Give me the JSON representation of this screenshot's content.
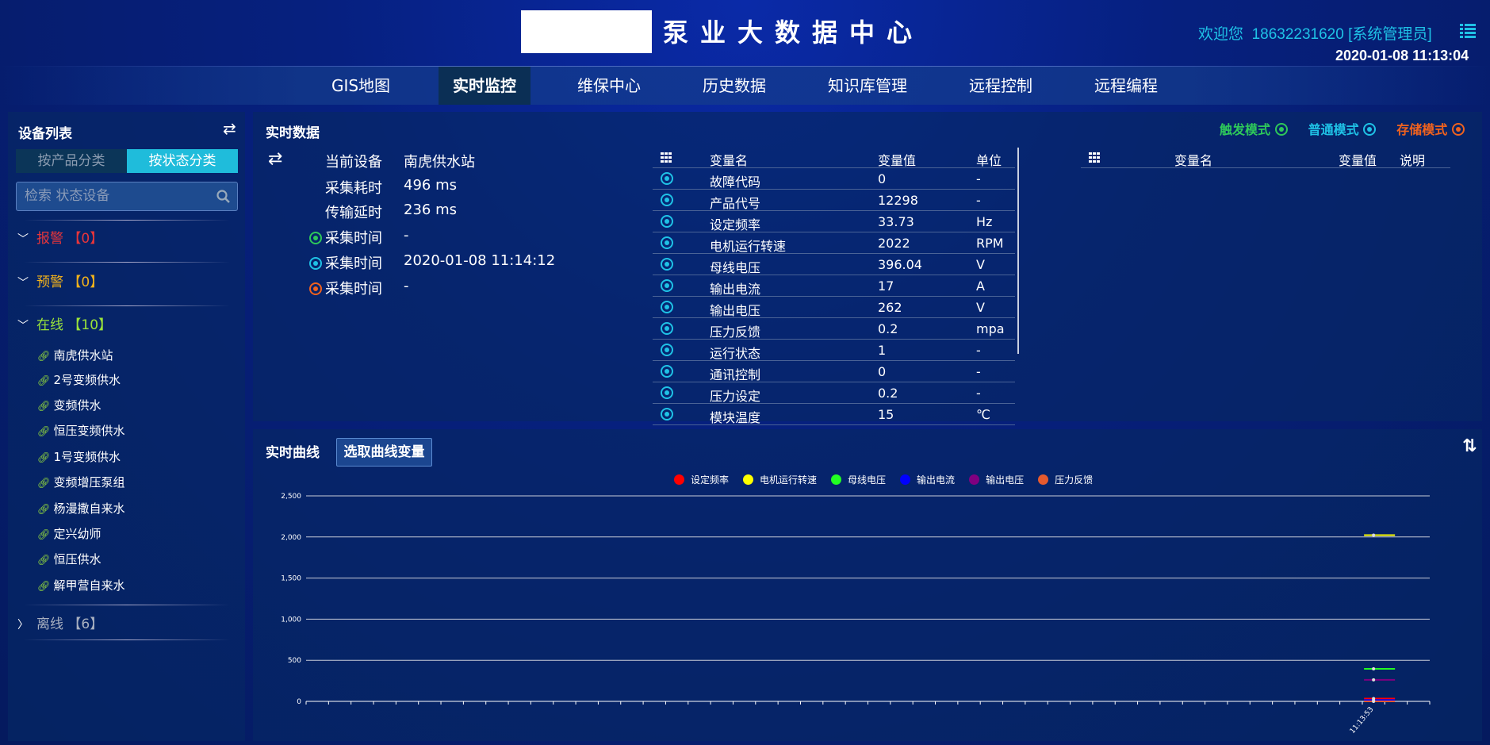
{
  "header": {
    "title": "泵业大数据中心",
    "welcome": "欢迎您",
    "user": "18632231620 [系统管理员]",
    "datetime": "2020-01-08 11:13:04"
  },
  "nav": [
    {
      "label": "GIS地图"
    },
    {
      "label": "实时监控",
      "active": true
    },
    {
      "label": "维保中心"
    },
    {
      "label": "历史数据"
    },
    {
      "label": "知识库管理"
    },
    {
      "label": "远程控制"
    },
    {
      "label": "远程编程"
    }
  ],
  "sidebar": {
    "title": "设备列表",
    "tabs": [
      {
        "label": "按产品分类"
      },
      {
        "label": "按状态分类",
        "active": true
      }
    ],
    "search_placeholder": "检索 状态设备",
    "groups": [
      {
        "label": "报警",
        "count": "【0】",
        "color": "#e8353a",
        "expanded": true
      },
      {
        "label": "预警",
        "count": "【0】",
        "color": "#f2b21b",
        "expanded": true
      },
      {
        "label": "在线",
        "count": "【10】",
        "color": "#9be43a",
        "expanded": true
      },
      {
        "label": "离线",
        "count": "【6】",
        "color": "#a8b0c0",
        "expanded": false
      }
    ],
    "devices": [
      "南虎供水站",
      "2号变频供水",
      "变频供水",
      "恒压变频供水",
      "1号变频供水",
      "变频增压泵组",
      "杨漫撒自来水",
      "定兴幼师",
      "恒压供水",
      "解甲营自来水"
    ]
  },
  "realtime": {
    "title": "实时数据",
    "modes": [
      {
        "label": "触发模式",
        "color": "#2ec85a"
      },
      {
        "label": "普通模式",
        "color": "#1fc2e6"
      },
      {
        "label": "存储模式",
        "color": "#f0621e"
      }
    ],
    "info": [
      {
        "label": "当前设备",
        "value": "南虎供水站"
      },
      {
        "label": "采集耗时",
        "value": "496 ms"
      },
      {
        "label": "传输延时",
        "value": "236 ms"
      },
      {
        "label": "采集时间",
        "value": "-",
        "icon_color": "#2ec85a"
      },
      {
        "label": "采集时间",
        "value": "2020-01-08 11:14:12",
        "icon_color": "#1fc2e6"
      },
      {
        "label": "采集时间",
        "value": "-",
        "icon_color": "#f0621e"
      }
    ],
    "table": {
      "headers": [
        "变量名",
        "变量值",
        "单位"
      ],
      "rows": [
        [
          "故障代码",
          "0",
          "-"
        ],
        [
          "产品代号",
          "12298",
          "-"
        ],
        [
          "设定频率",
          "33.73",
          "Hz"
        ],
        [
          "电机运行转速",
          "2022",
          "RPM"
        ],
        [
          "母线电压",
          "396.04",
          "V"
        ],
        [
          "输出电流",
          "17",
          "A"
        ],
        [
          "输出电压",
          "262",
          "V"
        ],
        [
          "压力反馈",
          "0.2",
          "mpa"
        ],
        [
          "运行状态",
          "1",
          "-"
        ],
        [
          "通讯控制",
          "0",
          "-"
        ],
        [
          "压力设定",
          "0.2",
          "-"
        ],
        [
          "模块温度",
          "15",
          "℃"
        ]
      ]
    },
    "table2": {
      "headers": [
        "变量名",
        "变量值",
        "说明"
      ]
    }
  },
  "curve": {
    "title": "实时曲线",
    "select_button": "选取曲线变量"
  },
  "chart_data": {
    "type": "line",
    "x": [
      "11:13:53"
    ],
    "ylim": [
      0,
      2500
    ],
    "yticks": [
      "0",
      "500",
      "1,000",
      "1,500",
      "2,000",
      "2,500"
    ],
    "grid": true,
    "legend": "top",
    "series": [
      {
        "name": "设定频率",
        "color": "#ff0000",
        "values": [
          33.73
        ]
      },
      {
        "name": "电机运行转速",
        "color": "#ffff00",
        "values": [
          2022
        ]
      },
      {
        "name": "母线电压",
        "color": "#22ff22",
        "values": [
          396.04
        ]
      },
      {
        "name": "输出电流",
        "color": "#0000ff",
        "values": [
          17
        ]
      },
      {
        "name": "输出电压",
        "color": "#800080",
        "values": [
          262
        ]
      },
      {
        "name": "压力反馈",
        "color": "#e65a2e",
        "values": [
          0.2
        ]
      }
    ]
  }
}
